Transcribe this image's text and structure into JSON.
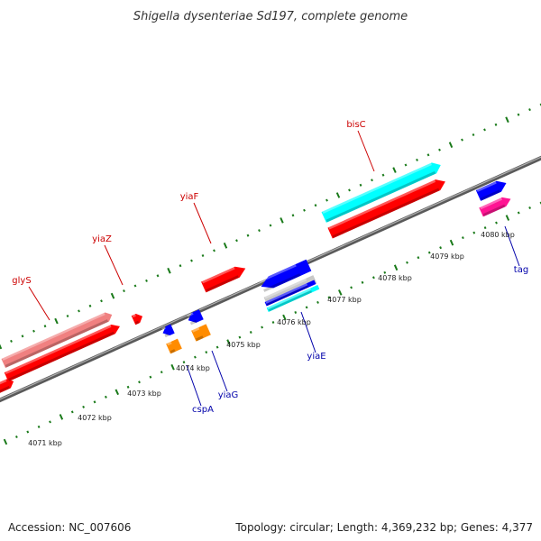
{
  "title": "Shigella dysenteriae Sd197, complete genome",
  "footer": {
    "accession": "Accession: NC_007606",
    "summary": "Topology: circular; Length: 4,369,232 bp; Genes: 4,377"
  },
  "colors": {
    "backbone": "#808080",
    "tick": "#1a7a1a",
    "label_forward": "#cc0000",
    "label_reverse": "#0000aa",
    "gene_red": "#ff0000",
    "gene_pink": "#f08080",
    "gene_cyan": "#00ffff",
    "gene_blue": "#0000ff",
    "gene_orange": "#ff8c00",
    "gene_magenta": "#ff1493"
  },
  "ticks": [
    "4071 kbp",
    "4072 kbp",
    "4073 kbp",
    "4074 kbp",
    "4075 kbp",
    "4076 kbp",
    "4077 kbp",
    "4078 kbp",
    "4079 kbp",
    "4080 kbp"
  ],
  "gene_labels": [
    {
      "name": "glyS",
      "strand": "forward"
    },
    {
      "name": "yiaZ",
      "strand": "forward"
    },
    {
      "name": "yiaF",
      "strand": "forward"
    },
    {
      "name": "bisC",
      "strand": "forward"
    },
    {
      "name": "cspA",
      "strand": "reverse"
    },
    {
      "name": "yiaG",
      "strand": "reverse"
    },
    {
      "name": "yiaE",
      "strand": "reverse"
    },
    {
      "name": "tag",
      "strand": "reverse"
    }
  ]
}
